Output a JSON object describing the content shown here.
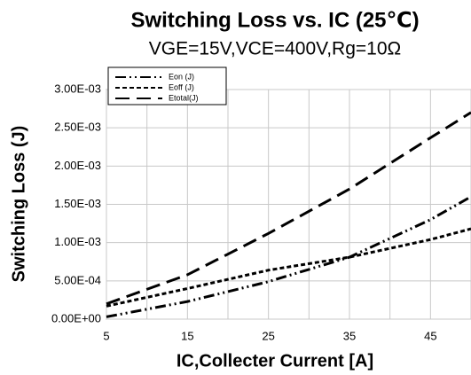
{
  "chart_data": {
    "type": "line",
    "title": "Switching Loss vs. IC (25℃)",
    "subtitle": "VGE=15V,VCE=400V,Rg=10Ω",
    "x_label": "IC,Collecter Current [A]",
    "y_label": "Switching Loss (J)",
    "x": [
      5,
      15,
      25,
      35,
      45,
      50
    ],
    "series": [
      {
        "name": "Eon (J)",
        "color": "#000000",
        "dash": "12,4,2,4,2,4",
        "values": [
          3e-05,
          0.00023,
          0.00049,
          0.00081,
          0.0013,
          0.0016
        ]
      },
      {
        "name": "Eoff (J)",
        "color": "#000000",
        "dash": "5,3",
        "values": [
          0.00017,
          0.0004,
          0.00064,
          0.00081,
          0.00104,
          0.00118
        ]
      },
      {
        "name": "Etotal(J)",
        "color": "#000000",
        "dash": "16,8",
        "values": [
          0.0002,
          0.00058,
          0.00112,
          0.0017,
          0.00237,
          0.0027
        ]
      }
    ],
    "xlim": [
      5,
      50
    ],
    "xticks": [
      5,
      15,
      25,
      35,
      45
    ],
    "minor_xticks": [
      10,
      20,
      30,
      40,
      50
    ],
    "ylim": [
      0,
      0.003
    ],
    "yticks": [
      {
        "value": 0,
        "label": "0.00E+00"
      },
      {
        "value": 0.0005,
        "label": "5.00E-04"
      },
      {
        "value": 0.001,
        "label": "1.00E-03"
      },
      {
        "value": 0.0015,
        "label": "1.50E-03"
      },
      {
        "value": 0.002,
        "label": "2.00E-03"
      },
      {
        "value": 0.0025,
        "label": "2.50E-03"
      },
      {
        "value": 0.003,
        "label": "3.00E-03"
      }
    ],
    "grid": true,
    "legend": "top-left"
  }
}
